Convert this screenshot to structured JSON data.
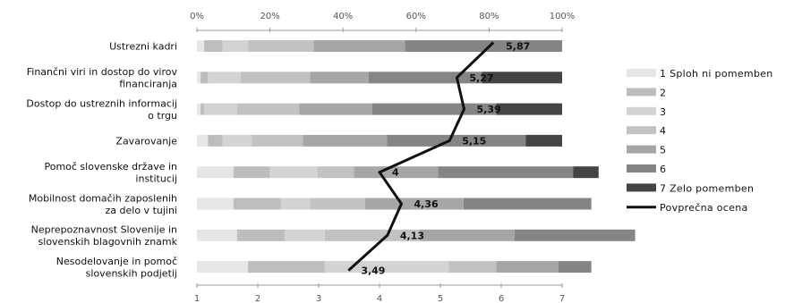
{
  "chart_data": {
    "type": "bar",
    "stacked": "100%",
    "orientation": "horizontal",
    "categories": [
      [
        "Ustrezni kadri"
      ],
      [
        "Finančni viri in dostop do virov",
        "financiranja"
      ],
      [
        "Dostop do ustreznih informacij",
        "o trgu"
      ],
      [
        "Zavarovanje"
      ],
      [
        "Pomoč slovenske države in",
        "institucij"
      ],
      [
        "Mobilnost domačih zaposlenih",
        "za delo v tujini"
      ],
      [
        "Neprepoznavnost Slovenije in",
        "slovenskih blagovnih znamk"
      ],
      [
        "Nesodelovanje in pomoč",
        "slovenskih podjetij"
      ]
    ],
    "series": [
      {
        "name": "1 Sploh ni pomemben",
        "color": "#e6e6e6",
        "values": [
          2,
          1,
          1,
          3,
          10,
          10,
          11,
          14
        ]
      },
      {
        "name": "2",
        "color": "#bdbdbd",
        "values": [
          5,
          2,
          1,
          4,
          10,
          13,
          13,
          21
        ]
      },
      {
        "name": "3",
        "color": "#d3d3d3",
        "values": [
          7,
          9,
          9,
          8,
          13,
          8,
          11,
          34
        ]
      },
      {
        "name": "4",
        "color": "#c2c2c2",
        "values": [
          18,
          19,
          17,
          14,
          10,
          15,
          26,
          13
        ]
      },
      {
        "name": "5",
        "color": "#a6a6a6",
        "values": [
          25,
          16,
          20,
          23,
          23,
          27,
          26,
          17
        ]
      },
      {
        "name": "6",
        "color": "#858585",
        "values": [
          43,
          31,
          34,
          38,
          37,
          35,
          33,
          9
        ]
      },
      {
        "name": "7 Zelo pomemben",
        "color": "#444444",
        "values": [
          0,
          22,
          18,
          10,
          7,
          0,
          0,
          0
        ]
      }
    ],
    "average": {
      "name": "Povprečna ocena",
      "color": "#111111",
      "values": [
        5.87,
        5.27,
        5.39,
        5.15,
        4,
        4.36,
        4.13,
        3.49
      ],
      "labels": [
        "5,87",
        "5,27",
        "5,39",
        "5,15",
        "4",
        "4,36",
        "4,13",
        "3,49"
      ]
    },
    "top_axis": {
      "ticks": [
        "0%",
        "20%",
        "40%",
        "60%",
        "80%",
        "100%"
      ],
      "range": [
        0,
        100
      ]
    },
    "bottom_axis": {
      "ticks": [
        "1",
        "2",
        "3",
        "4",
        "5",
        "6",
        "7"
      ],
      "range": [
        1,
        7
      ]
    },
    "legend_position": "right",
    "grid": false
  }
}
